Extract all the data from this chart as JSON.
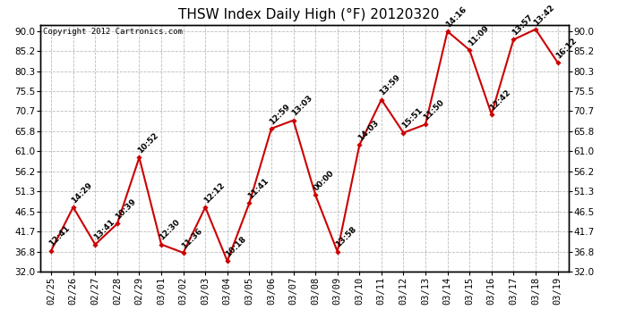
{
  "title": "THSW Index Daily High (°F) 20120320",
  "copyright": "Copyright 2012 Cartronics.com",
  "dates": [
    "02/25",
    "02/26",
    "02/27",
    "02/28",
    "02/29",
    "03/01",
    "03/02",
    "03/03",
    "03/04",
    "03/05",
    "03/06",
    "03/07",
    "03/08",
    "03/09",
    "03/10",
    "03/11",
    "03/12",
    "03/13",
    "03/14",
    "03/15",
    "03/16",
    "03/17",
    "03/18",
    "03/19"
  ],
  "values": [
    37.0,
    47.5,
    38.5,
    43.5,
    59.5,
    38.5,
    36.5,
    47.5,
    34.5,
    48.5,
    66.5,
    68.5,
    50.5,
    36.8,
    62.5,
    73.5,
    65.5,
    67.5,
    90.0,
    85.5,
    70.0,
    88.0,
    90.5,
    82.5
  ],
  "labels": [
    "12:41",
    "14:29",
    "13:41",
    "10:39",
    "10:52",
    "12:30",
    "11:36",
    "12:12",
    "10:18",
    "11:41",
    "12:59",
    "13:03",
    "00:00",
    "13:58",
    "14:03",
    "13:59",
    "15:51",
    "11:50",
    "14:16",
    "11:09",
    "12:42",
    "13:57",
    "13:42",
    "16:12"
  ],
  "ylim_min": 32.0,
  "ylim_max": 91.5,
  "ytick_vals": [
    32.0,
    36.8,
    41.7,
    46.5,
    51.3,
    56.2,
    61.0,
    65.8,
    70.7,
    75.5,
    80.3,
    85.2,
    90.0
  ],
  "line_color": "#cc0000",
  "marker_color": "#cc0000",
  "bg_color": "#ffffff",
  "grid_color": "#aaaaaa",
  "title_fontsize": 11,
  "copyright_fontsize": 6.5,
  "label_fontsize": 6.5,
  "tick_fontsize": 7.5
}
